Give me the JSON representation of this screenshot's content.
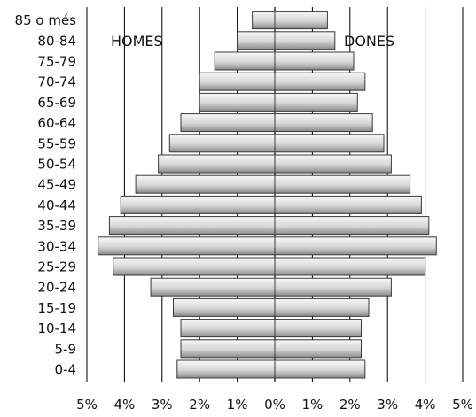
{
  "chart_data": {
    "type": "bar",
    "orientation": "horizontal",
    "layout": "population-pyramid",
    "categories": [
      "0-4",
      "5-9",
      "10-14",
      "15-19",
      "20-24",
      "25-29",
      "30-34",
      "35-39",
      "40-44",
      "45-49",
      "50-54",
      "55-59",
      "60-64",
      "65-69",
      "70-74",
      "75-79",
      "80-84",
      "85 o més"
    ],
    "series": [
      {
        "name": "HOMES",
        "side": "left",
        "values": [
          2.6,
          2.5,
          2.5,
          2.7,
          3.3,
          4.3,
          4.7,
          4.4,
          4.1,
          3.7,
          3.1,
          2.8,
          2.5,
          2.0,
          2.0,
          1.6,
          1.0,
          0.6
        ]
      },
      {
        "name": "DONES",
        "side": "right",
        "values": [
          2.4,
          2.3,
          2.3,
          2.5,
          3.1,
          4.0,
          4.3,
          4.1,
          3.9,
          3.6,
          3.1,
          2.9,
          2.6,
          2.2,
          2.4,
          2.1,
          1.6,
          1.4
        ]
      }
    ],
    "x_ticks": [
      "5%",
      "4%",
      "3%",
      "2%",
      "1%",
      "0%",
      "1%",
      "2%",
      "3%",
      "4%",
      "5%"
    ],
    "xlim": [
      -5,
      5
    ],
    "grid": "vertical",
    "legend": "none",
    "colors": {
      "bar_top": "#f7f7f7",
      "bar_mid": "#d6d6d6",
      "bar_bottom": "#8a8a8a",
      "bar_edge": "#3a3a3a",
      "grid": "#000000"
    }
  }
}
